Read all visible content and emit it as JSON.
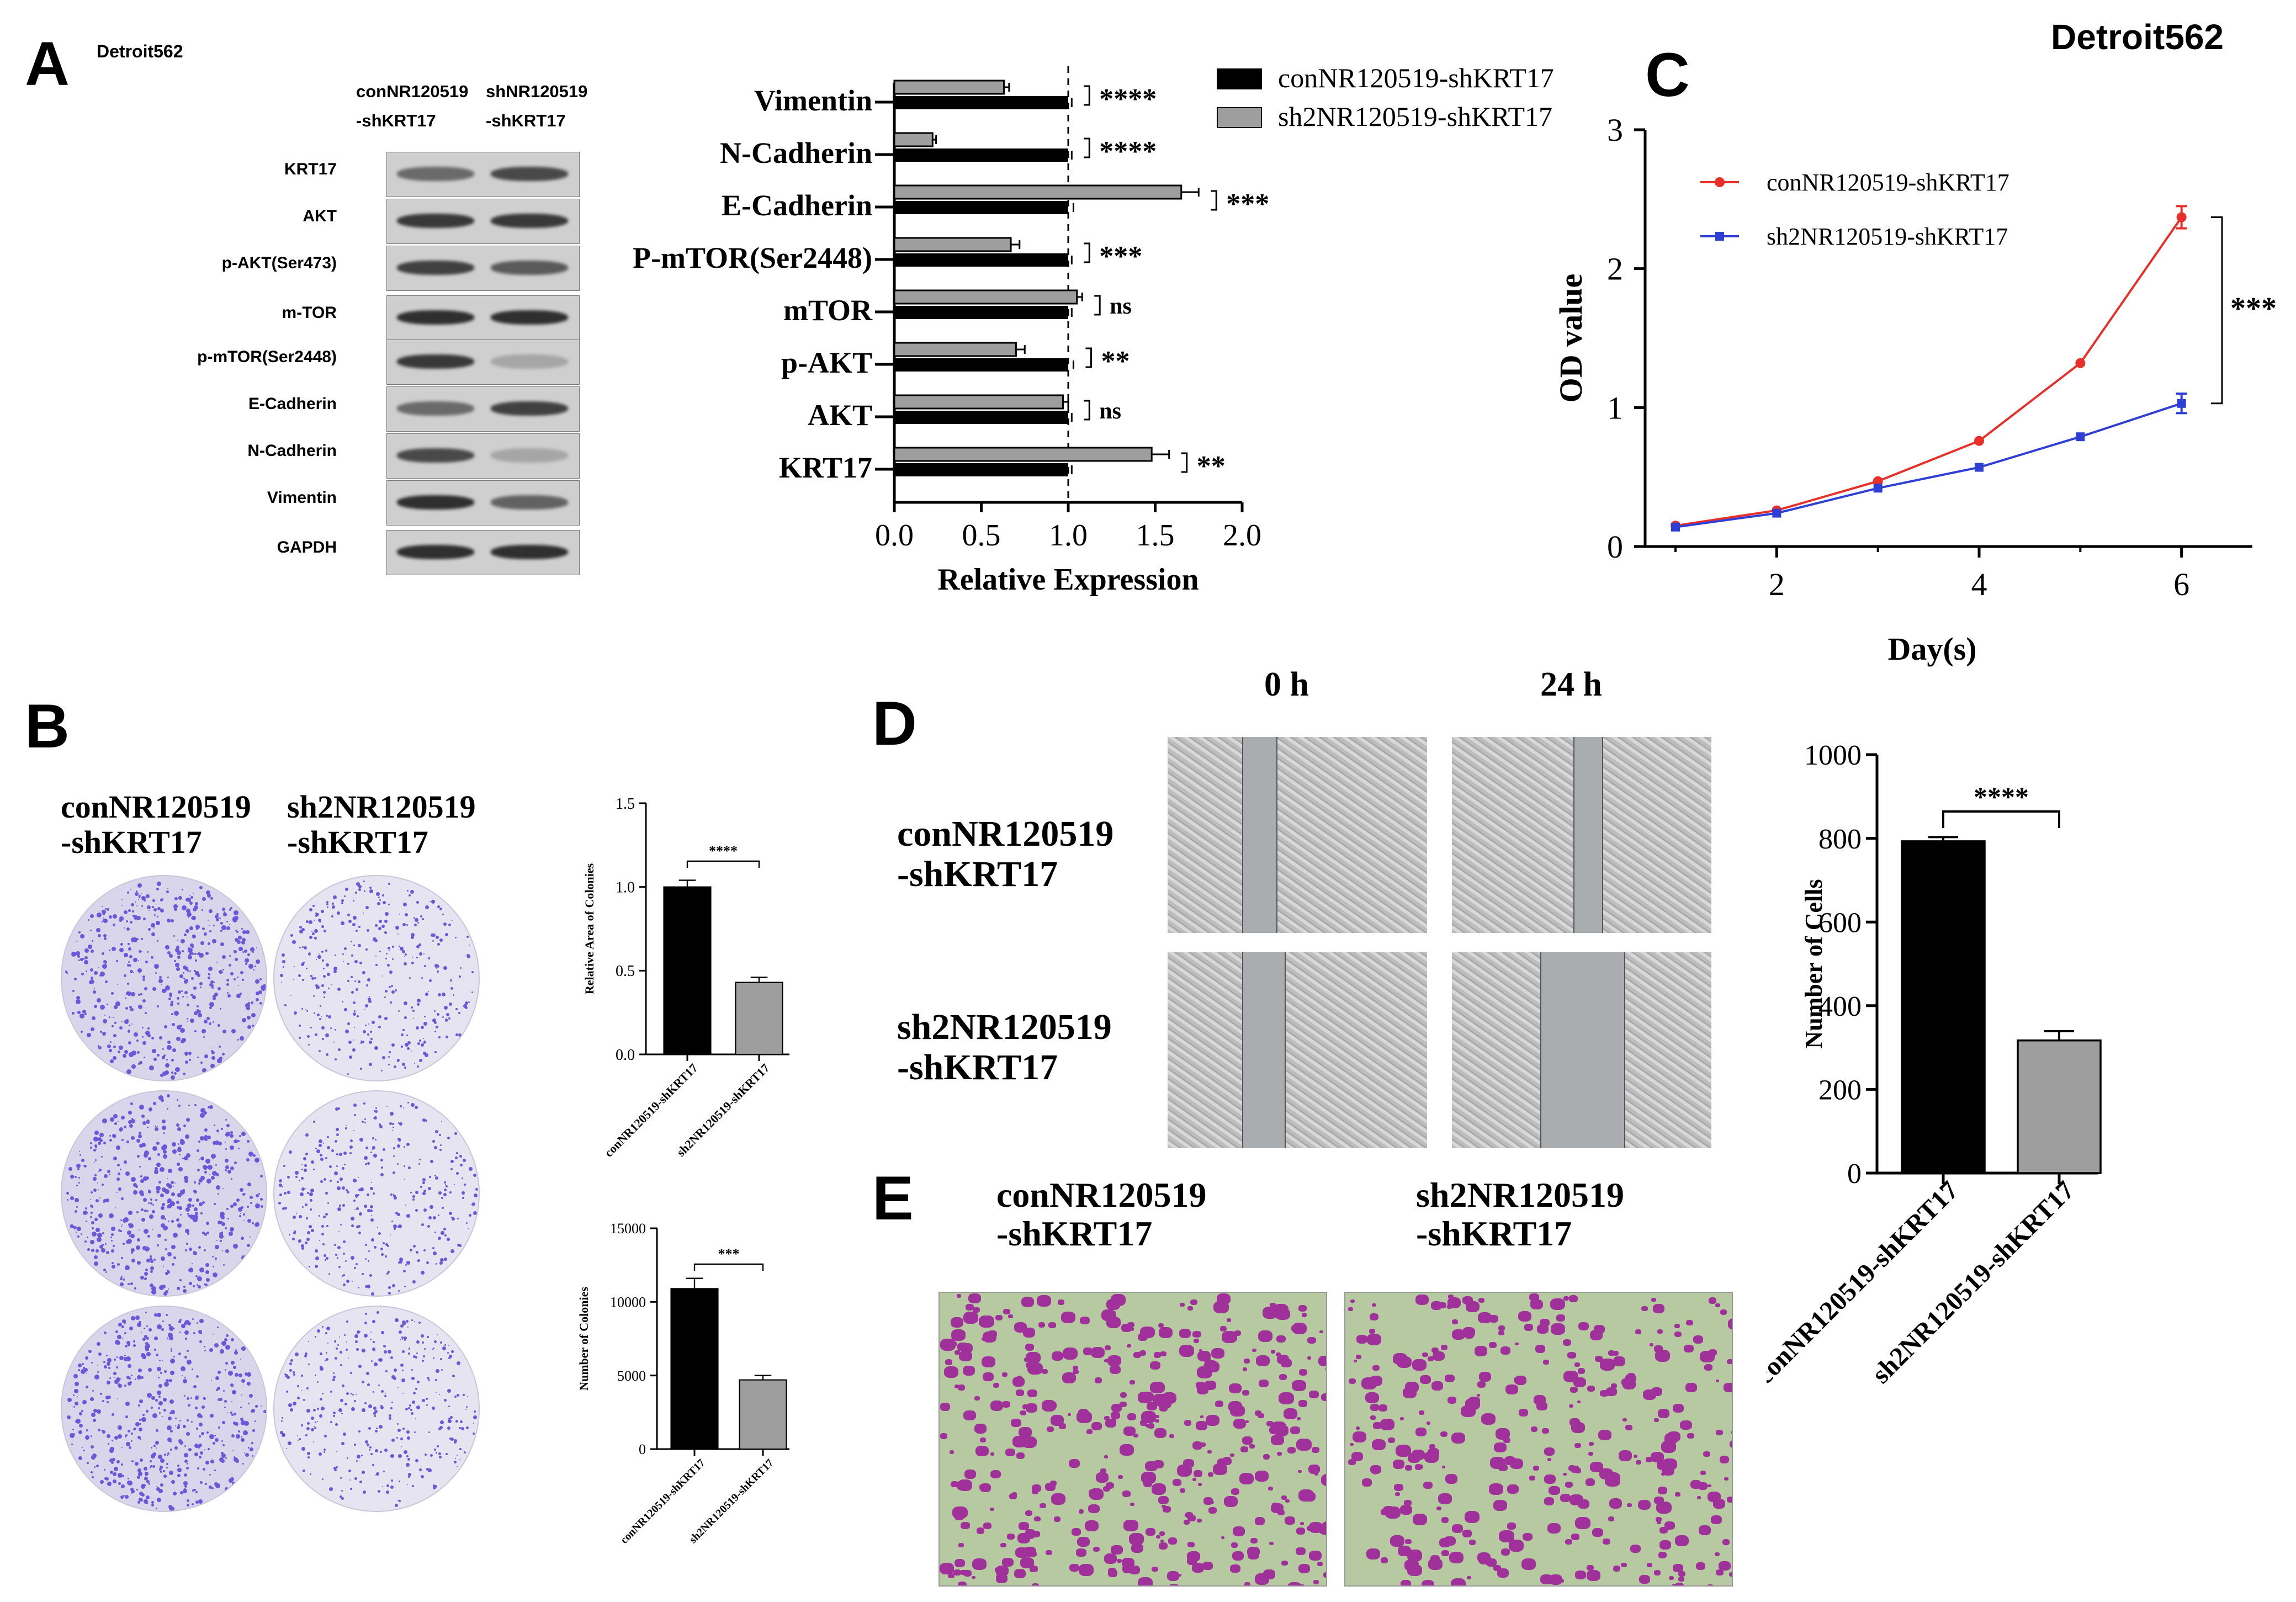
{
  "figure_title": "Detroit562",
  "panel_letters": {
    "A": "A",
    "B": "B",
    "C": "C",
    "D": "D",
    "E": "E"
  },
  "panel_a": {
    "cell_line": "Detroit562",
    "col_headers": [
      {
        "line1": "conNR120519",
        "line2": "-shKRT17"
      },
      {
        "line1": "shNR120519",
        "line2": "-shKRT17"
      }
    ],
    "blot_rows": [
      "KRT17",
      "AKT",
      "p-AKT(Ser473)",
      "m-TOR",
      "p-mTOR(Ser2448)",
      "E-Cadherin",
      "N-Cadherin",
      "Vimentin",
      "GAPDH"
    ],
    "band_intensity": {
      "con": [
        0.55,
        0.85,
        0.8,
        0.9,
        0.85,
        0.55,
        0.75,
        0.9,
        0.9
      ],
      "sh": [
        0.75,
        0.85,
        0.65,
        0.9,
        0.2,
        0.8,
        0.2,
        0.6,
        0.9
      ]
    }
  },
  "chart_data": [
    {
      "id": "A-bar",
      "type": "bar",
      "orientation": "horizontal",
      "categories": [
        "Vimentin",
        "N-Cadherin",
        "E-Cadherin",
        "P-mTOR(Ser2448)",
        "mTOR",
        "p-AKT",
        "AKT",
        "KRT17"
      ],
      "series": [
        {
          "name": "conNR120519-shKRT17",
          "color": "#000000",
          "values": [
            1.0,
            1.0,
            1.0,
            1.0,
            1.0,
            1.0,
            1.0,
            1.0
          ],
          "errors": [
            0.02,
            0.02,
            0.03,
            0.02,
            0.02,
            0.03,
            0.02,
            0.02
          ]
        },
        {
          "name": "sh2NR120519-shKRT17",
          "color": "#9e9e9e",
          "values": [
            0.63,
            0.22,
            1.65,
            0.67,
            1.05,
            0.7,
            0.97,
            1.48
          ],
          "errors": [
            0.03,
            0.02,
            0.1,
            0.05,
            0.03,
            0.05,
            0.03,
            0.1
          ]
        }
      ],
      "significance": [
        "****",
        "****",
        "***",
        "***",
        "ns",
        "**",
        "ns",
        "**"
      ],
      "xlabel": "Relative Expression",
      "xlim": [
        0,
        2.0
      ],
      "xticks": [
        "0.0",
        "0.5",
        "1.0",
        "1.5",
        "2.0"
      ],
      "reference_line": 1.0,
      "legend_position": "top-right"
    },
    {
      "id": "C-line",
      "type": "line",
      "x": [
        1,
        2,
        3,
        4,
        5,
        6
      ],
      "series": [
        {
          "name": "conNR120519-shKRT17",
          "color": "#e8302a",
          "values": [
            0.15,
            0.26,
            0.47,
            0.76,
            1.32,
            2.37
          ],
          "errors": [
            0.01,
            0.01,
            0.01,
            0.01,
            0.02,
            0.08
          ]
        },
        {
          "name": "sh2NR120519-shKRT17",
          "color": "#2f3fd6",
          "values": [
            0.14,
            0.24,
            0.42,
            0.57,
            0.79,
            1.03
          ],
          "errors": [
            0.01,
            0.01,
            0.01,
            0.01,
            0.02,
            0.07
          ]
        }
      ],
      "significance": "***",
      "xlabel": "Day(s)",
      "ylabel": "OD value",
      "xlim": [
        0.7,
        6.7
      ],
      "ylim": [
        0,
        3
      ],
      "xticks": [
        "2",
        "4",
        "6"
      ],
      "yticks": [
        "0",
        "1",
        "2",
        "3"
      ],
      "legend_position": "top-left"
    },
    {
      "id": "B-area",
      "type": "bar",
      "categories": [
        "conNR120519-shKRT17",
        "sh2NR120519-shKRT17"
      ],
      "values": [
        1.0,
        0.43
      ],
      "errors": [
        0.04,
        0.03
      ],
      "colors": [
        "#000000",
        "#9e9e9e"
      ],
      "significance": "****",
      "ylabel": "Relative Area of Colonies",
      "ylim": [
        0,
        1.5
      ],
      "yticks": [
        "0.0",
        "0.5",
        "1.0",
        "1.5"
      ]
    },
    {
      "id": "B-number",
      "type": "bar",
      "categories": [
        "conNR120519-shKRT17",
        "sh2NR120519-shKRT17"
      ],
      "values": [
        10900,
        4700
      ],
      "errors": [
        700,
        300
      ],
      "colors": [
        "#000000",
        "#9e9e9e"
      ],
      "significance": "***",
      "ylabel": "Number of Colonies",
      "ylim": [
        0,
        15000
      ],
      "yticks": [
        "0",
        "5000",
        "10000",
        "15000"
      ]
    },
    {
      "id": "D-bar",
      "type": "bar",
      "categories": [
        "conNR120519-shKRT17",
        "sh2NR120519-shKRT17"
      ],
      "values": [
        793,
        317
      ],
      "errors": [
        10,
        22
      ],
      "colors": [
        "#000000",
        "#9e9e9e"
      ],
      "significance": "****",
      "ylabel": "Number of Cells",
      "ylim": [
        0,
        1000
      ],
      "yticks": [
        "0",
        "200",
        "400",
        "600",
        "800",
        "1000"
      ]
    }
  ],
  "panel_b": {
    "col_labels": [
      {
        "text": "conNR120519\n-shKRT17"
      },
      {
        "text": "sh2NR120519\n-shKRT17"
      }
    ]
  },
  "panel_d": {
    "time_labels": [
      "0 h",
      "24 h"
    ],
    "row_labels": [
      {
        "text": "conNR120519\n-shKRT17"
      },
      {
        "text": "sh2NR120519\n-shKRT17"
      }
    ]
  },
  "panel_e": {
    "col_labels": [
      {
        "text": "conNR120519\n-shKRT17"
      },
      {
        "text": "sh2NR120519\n-shKRT17"
      }
    ]
  }
}
